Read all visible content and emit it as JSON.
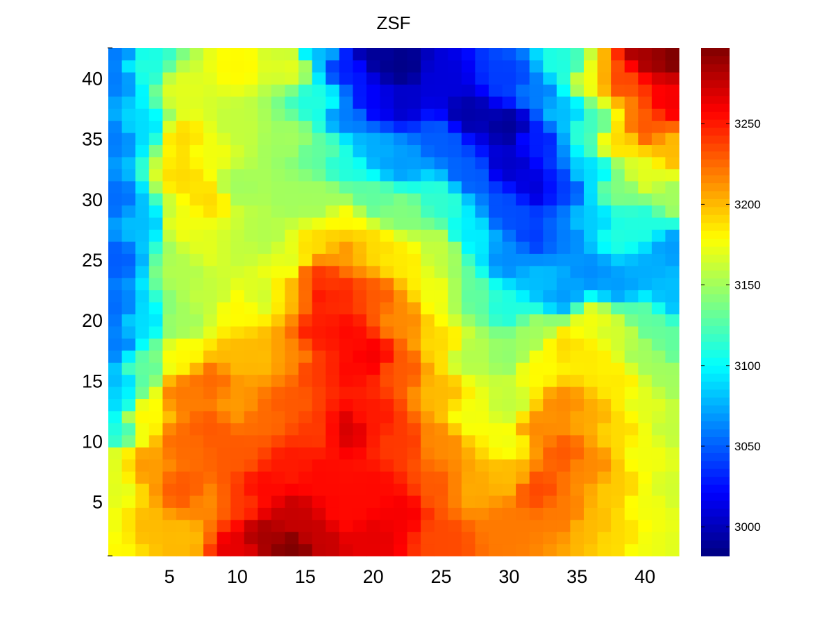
{
  "chart_data": {
    "type": "heatmap",
    "title": "ZSF",
    "xlabel": "",
    "ylabel": "",
    "xlim": [
      0.5,
      42.5
    ],
    "ylim": [
      0.5,
      42.5
    ],
    "x_ticks": [
      5,
      10,
      15,
      20,
      25,
      30,
      35,
      40
    ],
    "y_ticks": [
      5,
      10,
      15,
      20,
      25,
      30,
      35,
      40
    ],
    "grid_size": [
      42,
      42
    ],
    "colormap": "jet",
    "colorbar": {
      "range": [
        2982,
        3297
      ],
      "ticks": [
        3000,
        3050,
        3100,
        3150,
        3200,
        3250
      ],
      "placement": "right"
    },
    "grid": false,
    "surface_anchor_points": [
      [
        1,
        1,
        3180
      ],
      [
        1,
        3,
        3175
      ],
      [
        1,
        6,
        3170
      ],
      [
        1,
        8,
        3170
      ],
      [
        1,
        11,
        3110
      ],
      [
        1,
        13,
        3090
      ],
      [
        1,
        15,
        3080
      ],
      [
        1,
        18,
        3060
      ],
      [
        1,
        21,
        3055
      ],
      [
        1,
        25,
        3050
      ],
      [
        1,
        30,
        3055
      ],
      [
        1,
        35,
        3060
      ],
      [
        1,
        40,
        3060
      ],
      [
        1,
        42,
        3060
      ],
      [
        3,
        3,
        3200
      ],
      [
        3,
        8,
        3210
      ],
      [
        3,
        12,
        3180
      ],
      [
        3,
        16,
        3130
      ],
      [
        3,
        20,
        3090
      ],
      [
        3,
        28,
        3080
      ],
      [
        3,
        36,
        3090
      ],
      [
        3,
        41,
        3110
      ],
      [
        6,
        2,
        3200
      ],
      [
        6,
        6,
        3230
      ],
      [
        6,
        10,
        3225
      ],
      [
        6,
        14,
        3220
      ],
      [
        6,
        17,
        3180
      ],
      [
        6,
        20,
        3150
      ],
      [
        6,
        24,
        3155
      ],
      [
        6,
        28,
        3175
      ],
      [
        6,
        32,
        3190
      ],
      [
        6,
        35,
        3190
      ],
      [
        6,
        39,
        3170
      ],
      [
        8,
        5,
        3215
      ],
      [
        8,
        11,
        3230
      ],
      [
        8,
        15,
        3225
      ],
      [
        8,
        22,
        3160
      ],
      [
        8,
        26,
        3170
      ],
      [
        8,
        30,
        3190
      ],
      [
        8,
        34,
        3175
      ],
      [
        10,
        1,
        3265
      ],
      [
        10,
        5,
        3240
      ],
      [
        10,
        9,
        3230
      ],
      [
        10,
        13,
        3210
      ],
      [
        10,
        17,
        3200
      ],
      [
        10,
        21,
        3180
      ],
      [
        10,
        26,
        3160
      ],
      [
        10,
        31,
        3150
      ],
      [
        10,
        36,
        3160
      ],
      [
        10,
        41,
        3180
      ],
      [
        12,
        2,
        3285
      ],
      [
        12,
        6,
        3255
      ],
      [
        12,
        12,
        3225
      ],
      [
        12,
        17,
        3200
      ],
      [
        12,
        22,
        3165
      ],
      [
        12,
        27,
        3155
      ],
      [
        14,
        1,
        3297
      ],
      [
        14,
        4,
        3275
      ],
      [
        14,
        8,
        3250
      ],
      [
        14,
        13,
        3230
      ],
      [
        14,
        17,
        3215
      ],
      [
        14,
        22,
        3200
      ],
      [
        14,
        25,
        3170
      ],
      [
        14,
        30,
        3150
      ],
      [
        14,
        35,
        3150
      ],
      [
        14,
        41,
        3170
      ],
      [
        16,
        2,
        3275
      ],
      [
        16,
        7,
        3255
      ],
      [
        16,
        11,
        3240
      ],
      [
        16,
        16,
        3240
      ],
      [
        16,
        19,
        3250
      ],
      [
        16,
        22,
        3250
      ],
      [
        16,
        24,
        3240
      ],
      [
        16,
        26,
        3190
      ],
      [
        16,
        30,
        3150
      ],
      [
        16,
        34,
        3130
      ],
      [
        16,
        38,
        3110
      ],
      [
        16,
        42,
        3080
      ],
      [
        18,
        4,
        3255
      ],
      [
        18,
        11,
        3270
      ],
      [
        18,
        16,
        3255
      ],
      [
        18,
        19,
        3255
      ],
      [
        18,
        22,
        3245
      ],
      [
        18,
        26,
        3210
      ],
      [
        18,
        28,
        3180
      ],
      [
        18,
        33,
        3110
      ],
      [
        18,
        37,
        3060
      ],
      [
        18,
        41,
        3030
      ],
      [
        20,
        2,
        3265
      ],
      [
        20,
        6,
        3255
      ],
      [
        20,
        12,
        3250
      ],
      [
        20,
        17,
        3260
      ],
      [
        20,
        22,
        3230
      ],
      [
        20,
        26,
        3190
      ],
      [
        20,
        30,
        3130
      ],
      [
        20,
        34,
        3075
      ],
      [
        20,
        38,
        3020
      ],
      [
        20,
        42,
        2990
      ],
      [
        22,
        4,
        3260
      ],
      [
        22,
        10,
        3240
      ],
      [
        22,
        16,
        3230
      ],
      [
        22,
        20,
        3215
      ],
      [
        22,
        25,
        3185
      ],
      [
        22,
        29,
        3140
      ],
      [
        22,
        33,
        3070
      ],
      [
        22,
        38,
        3005
      ],
      [
        22,
        41,
        2985
      ],
      [
        25,
        2,
        3235
      ],
      [
        25,
        6,
        3230
      ],
      [
        25,
        10,
        3215
      ],
      [
        25,
        14,
        3200
      ],
      [
        25,
        18,
        3190
      ],
      [
        25,
        22,
        3175
      ],
      [
        25,
        26,
        3160
      ],
      [
        25,
        30,
        3115
      ],
      [
        25,
        35,
        3050
      ],
      [
        25,
        40,
        3010
      ],
      [
        27,
        6,
        3205
      ],
      [
        27,
        12,
        3175
      ],
      [
        27,
        17,
        3155
      ],
      [
        27,
        22,
        3130
      ],
      [
        27,
        27,
        3095
      ],
      [
        27,
        32,
        3050
      ],
      [
        27,
        37,
        2995
      ],
      [
        30,
        3,
        3220
      ],
      [
        30,
        7,
        3200
      ],
      [
        30,
        10,
        3175
      ],
      [
        30,
        13,
        3160
      ],
      [
        30,
        17,
        3145
      ],
      [
        30,
        21,
        3110
      ],
      [
        30,
        25,
        3065
      ],
      [
        30,
        29,
        3045
      ],
      [
        30,
        33,
        3005
      ],
      [
        30,
        36,
        2990
      ],
      [
        30,
        40,
        3040
      ],
      [
        32,
        6,
        3235
      ],
      [
        32,
        11,
        3215
      ],
      [
        32,
        16,
        3180
      ],
      [
        32,
        19,
        3150
      ],
      [
        32,
        23,
        3080
      ],
      [
        32,
        27,
        3040
      ],
      [
        32,
        31,
        3010
      ],
      [
        32,
        35,
        3030
      ],
      [
        32,
        39,
        3060
      ],
      [
        34,
        4,
        3220
      ],
      [
        34,
        9,
        3230
      ],
      [
        34,
        13,
        3215
      ],
      [
        34,
        18,
        3190
      ],
      [
        34,
        22,
        3070
      ],
      [
        34,
        27,
        3060
      ],
      [
        34,
        31,
        3040
      ],
      [
        34,
        37,
        3080
      ],
      [
        34,
        41,
        3110
      ],
      [
        36,
        3,
        3200
      ],
      [
        36,
        8,
        3215
      ],
      [
        36,
        12,
        3205
      ],
      [
        36,
        17,
        3185
      ],
      [
        36,
        20,
        3175
      ],
      [
        36,
        24,
        3065
      ],
      [
        36,
        28,
        3085
      ],
      [
        36,
        32,
        3090
      ],
      [
        36,
        36,
        3120
      ],
      [
        36,
        40,
        3175
      ],
      [
        38,
        2,
        3190
      ],
      [
        38,
        6,
        3195
      ],
      [
        38,
        11,
        3190
      ],
      [
        38,
        15,
        3185
      ],
      [
        38,
        19,
        3165
      ],
      [
        38,
        23,
        3070
      ],
      [
        38,
        27,
        3110
      ],
      [
        38,
        31,
        3140
      ],
      [
        38,
        35,
        3190
      ],
      [
        38,
        40,
        3235
      ],
      [
        40,
        1,
        3175
      ],
      [
        40,
        5,
        3175
      ],
      [
        40,
        9,
        3175
      ],
      [
        40,
        13,
        3170
      ],
      [
        40,
        17,
        3150
      ],
      [
        40,
        20,
        3130
      ],
      [
        40,
        24,
        3075
      ],
      [
        40,
        28,
        3110
      ],
      [
        40,
        32,
        3170
      ],
      [
        40,
        36,
        3230
      ],
      [
        40,
        42,
        3285
      ],
      [
        42,
        1,
        3170
      ],
      [
        42,
        6,
        3165
      ],
      [
        42,
        11,
        3160
      ],
      [
        42,
        15,
        3150
      ],
      [
        42,
        18,
        3130
      ],
      [
        42,
        22,
        3080
      ],
      [
        42,
        26,
        3070
      ],
      [
        42,
        30,
        3150
      ],
      [
        42,
        34,
        3200
      ],
      [
        42,
        38,
        3260
      ],
      [
        42,
        42,
        3297
      ]
    ]
  }
}
